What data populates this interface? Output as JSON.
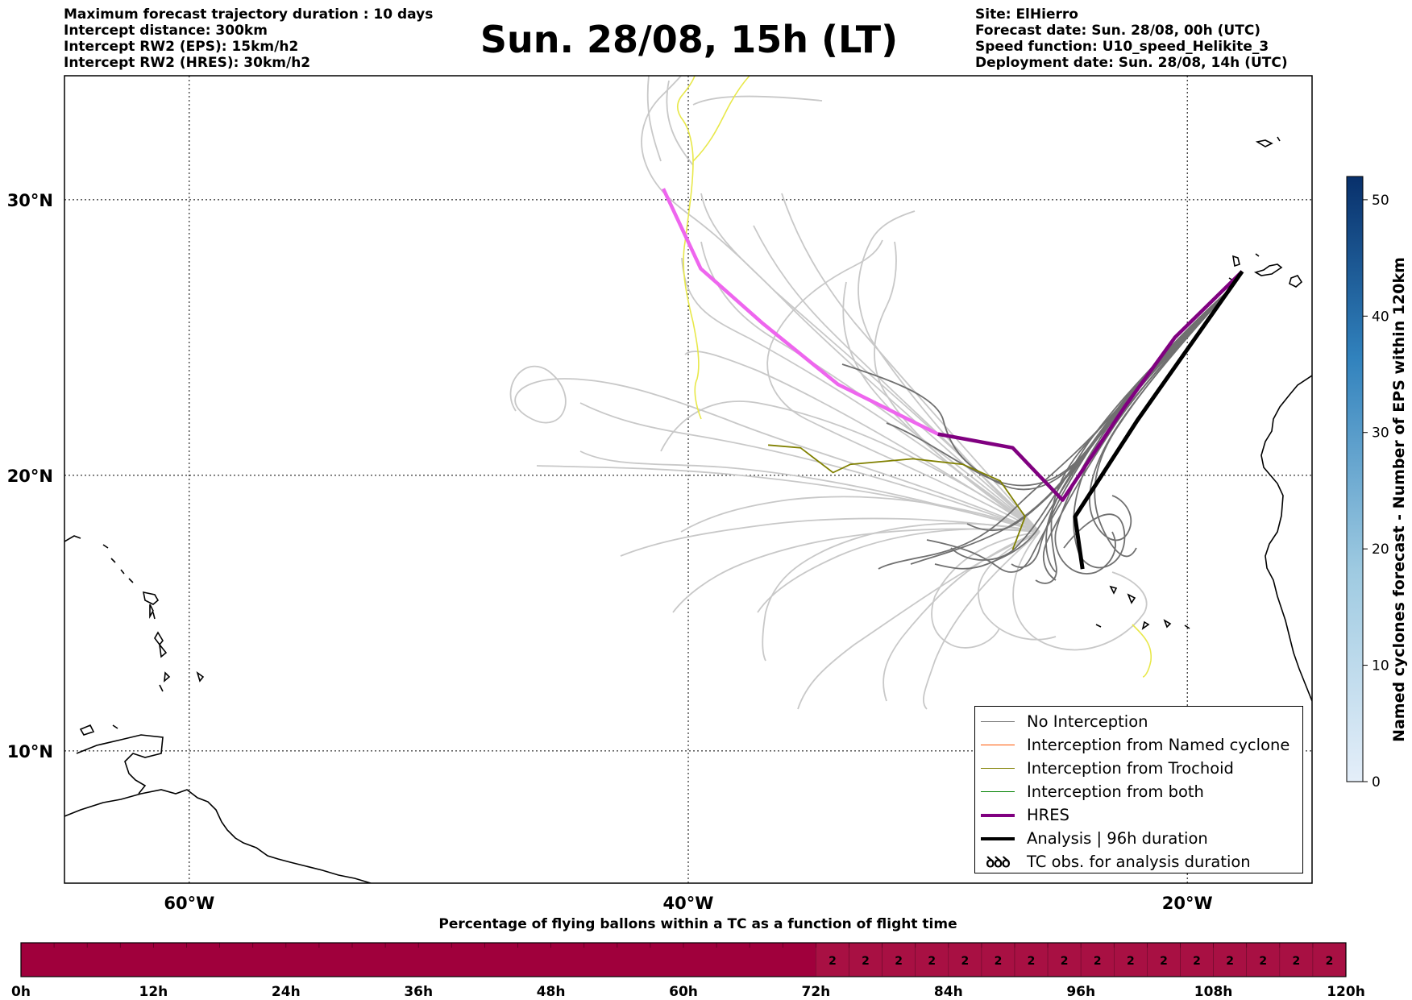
{
  "header_left": [
    "Maximum forecast trajectory duration : 10 days",
    "Intercept distance: 300km",
    "Intercept RW2 (EPS):  15km/h2",
    "Intercept RW2 (HRES): 30km/h2"
  ],
  "title": "Sun. 28/08, 15h (LT)",
  "header_right": [
    "Site: ElHierro",
    "Forecast date: Sun. 28/08, 00h (UTC)",
    "Speed function: U10_speed_Helikite_3",
    "Deployment date: Sun. 28/08, 14h (UTC)"
  ],
  "chart_data": {
    "type": "map-trajectories",
    "lon_ticks": [
      {
        "lon": -60,
        "label": "60°W"
      },
      {
        "lon": -40,
        "label": "40°W"
      },
      {
        "lon": -20,
        "label": "20°W"
      }
    ],
    "lat_ticks": [
      {
        "lat": 30,
        "label": "30°N"
      },
      {
        "lat": 20,
        "label": "20°N"
      },
      {
        "lat": 10,
        "label": "10°N"
      }
    ],
    "lon_range": [
      -65,
      -15
    ],
    "lat_range": [
      5.2,
      34.5
    ],
    "site": {
      "name": "ElHierro",
      "lon": -17.8,
      "lat": 27.4
    },
    "hres_track": [
      [
        -17.8,
        27.4
      ],
      [
        -20.5,
        25
      ],
      [
        -22.5,
        22.5
      ],
      [
        -25,
        19.1
      ],
      [
        -27,
        21
      ],
      [
        -30,
        21.5
      ],
      [
        -34,
        23.3
      ],
      [
        -37,
        25.5
      ],
      [
        -39.5,
        27.5
      ],
      [
        -41,
        30.4
      ]
    ],
    "analysis_track": [
      [
        -17.8,
        27.4
      ],
      [
        -22,
        22
      ],
      [
        -24.5,
        18.5
      ],
      [
        -24.2,
        16.6
      ]
    ],
    "trochoid_track": [
      [
        -36.8,
        21.1
      ],
      [
        -35.5,
        21
      ],
      [
        -34.2,
        20.1
      ],
      [
        -33.5,
        20.4
      ],
      [
        -31,
        20.6
      ],
      [
        -29,
        20.4
      ],
      [
        -27.5,
        19.8
      ],
      [
        -26.5,
        18.5
      ],
      [
        -27,
        17.3
      ]
    ],
    "legend": [
      {
        "label": "No Interception",
        "color": "#808080",
        "style": "line"
      },
      {
        "label": "Interception from Named cyclone",
        "color": "#ff5500",
        "style": "line"
      },
      {
        "label": "Interception from Trochoid",
        "color": "#808000",
        "style": "line"
      },
      {
        "label": "Interception from both",
        "color": "#008000",
        "style": "line"
      },
      {
        "label": "HRES",
        "color": "#800080",
        "style": "thick"
      },
      {
        "label": "Analysis | 96h duration",
        "color": "#000000",
        "style": "thick"
      },
      {
        "label": "TC obs. for analysis duration",
        "color": "#000000",
        "style": "tc-symbol"
      }
    ],
    "colorbar": {
      "label": "Named cyclones forecast - Number of EPS within 120km",
      "ticks": [
        "0",
        "10",
        "20",
        "30",
        "40",
        "50"
      ],
      "min": 0,
      "max": 52,
      "colors": [
        "#e4eef9",
        "#08306b"
      ]
    },
    "timeline": {
      "title": "Percentage of flying ballons within a TC as a function of flight time",
      "tick_labels": [
        "0h",
        "12h",
        "24h",
        "36h",
        "48h",
        "60h",
        "72h",
        "84h",
        "96h",
        "108h",
        "120h"
      ],
      "hours_max": 120,
      "values_from_72h": [
        "2",
        "2",
        "2",
        "2",
        "2",
        "2",
        "2",
        "2",
        "2",
        "2",
        "2",
        "2",
        "2",
        "2",
        "2",
        "2"
      ],
      "color": "#a0003c"
    },
    "colors": {
      "hres_light": "#ee66ee",
      "hres_dark": "#800080",
      "trajectory_light": "#c8c8c8",
      "trajectory_dark": "#707070",
      "yellow": "#e8e84a"
    }
  }
}
